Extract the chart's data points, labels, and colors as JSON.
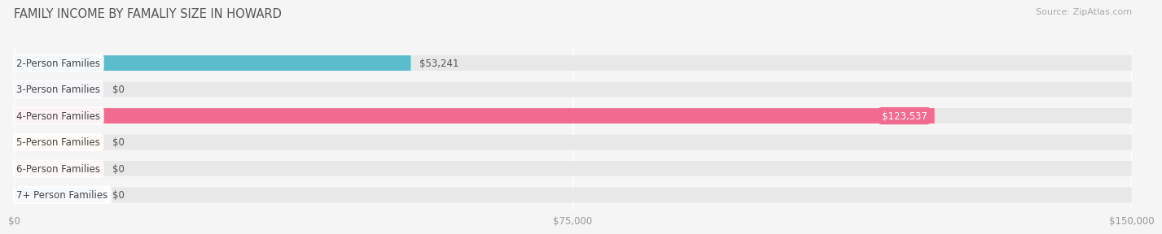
{
  "title": "FAMILY INCOME BY FAMALIY SIZE IN HOWARD",
  "source": "Source: ZipAtlas.com",
  "categories": [
    "2-Person Families",
    "3-Person Families",
    "4-Person Families",
    "5-Person Families",
    "6-Person Families",
    "7+ Person Families"
  ],
  "values": [
    53241,
    0,
    123537,
    0,
    0,
    0
  ],
  "bar_colors": [
    "#5bbccc",
    "#9b9bcf",
    "#f06b8f",
    "#f5c98a",
    "#f0a098",
    "#a8c8e8"
  ],
  "value_labels": [
    "$53,241",
    "$0",
    "$123,537",
    "$0",
    "$0",
    "$0"
  ],
  "xlim": [
    0,
    150000
  ],
  "xticks": [
    0,
    75000,
    150000
  ],
  "xticklabels": [
    "$0",
    "$75,000",
    "$150,000"
  ],
  "background_color": "#f5f5f5",
  "bar_bg_color": "#e8e8e8",
  "title_fontsize": 10.5,
  "source_fontsize": 8,
  "label_fontsize": 8.5,
  "value_fontsize": 8.5,
  "tick_fontsize": 8.5,
  "bar_height": 0.58,
  "zero_bar_width": 12000
}
